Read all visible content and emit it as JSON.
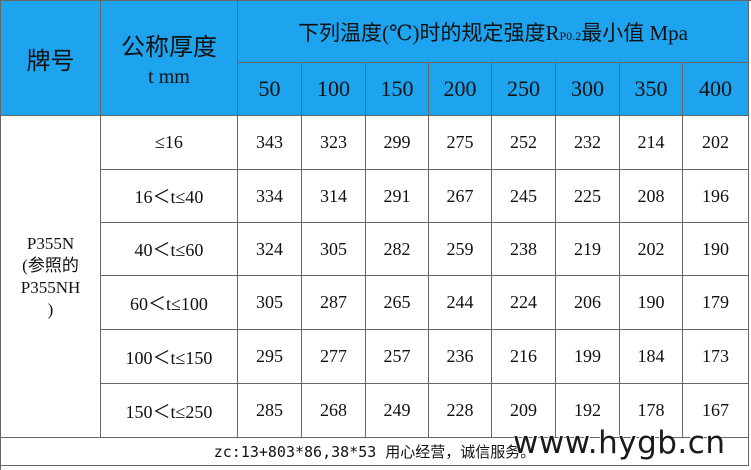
{
  "header": {
    "grade": "牌号",
    "thickness": "公称厚度",
    "thickness_unit": "t mm",
    "temp_title": "下列温度(℃)时的规定强度R",
    "temp_title_sub": "P0.2",
    "temp_title_end": "最小值 Mpa",
    "temps": [
      "50",
      "100",
      "150",
      "200",
      "250",
      "300",
      "350",
      "400"
    ]
  },
  "grade_lines": [
    "P355N",
    "(参照的",
    "P355NH",
    ")"
  ],
  "rows": [
    {
      "thickness": "≤16",
      "values": [
        343,
        323,
        299,
        275,
        252,
        232,
        214,
        202
      ]
    },
    {
      "thickness": "16＜t≤40",
      "values": [
        334,
        314,
        291,
        267,
        245,
        225,
        208,
        196
      ]
    },
    {
      "thickness": "40＜t≤60",
      "values": [
        324,
        305,
        282,
        259,
        238,
        219,
        202,
        190
      ]
    },
    {
      "thickness": "60＜t≤100",
      "values": [
        305,
        287,
        265,
        244,
        224,
        206,
        190,
        179
      ]
    },
    {
      "thickness": "100＜t≤150",
      "values": [
        295,
        277,
        257,
        236,
        216,
        199,
        184,
        173
      ]
    },
    {
      "thickness": "150＜t≤250",
      "values": [
        285,
        268,
        249,
        228,
        209,
        192,
        178,
        167
      ]
    }
  ],
  "footer": "zc:13+803*86,38*53 用心经营，诚信服务。",
  "watermark": "www.hygb.cn"
}
